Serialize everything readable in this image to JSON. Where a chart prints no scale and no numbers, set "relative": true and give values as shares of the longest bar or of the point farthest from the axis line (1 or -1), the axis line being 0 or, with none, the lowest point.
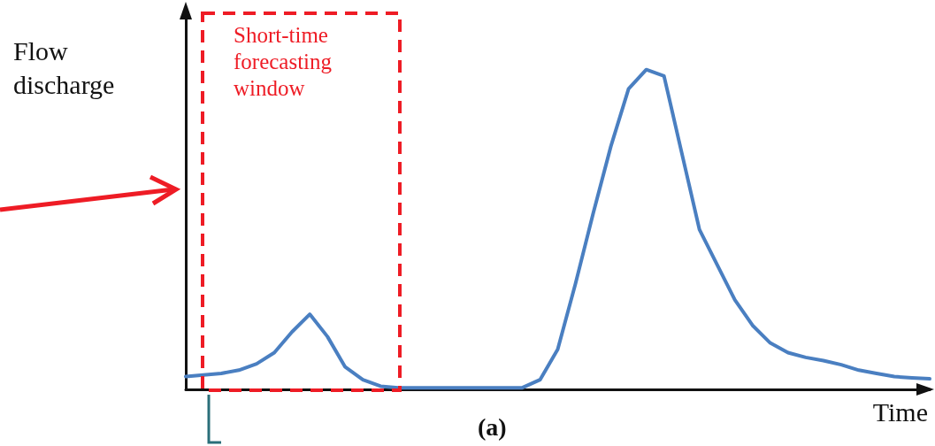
{
  "chart_data": {
    "type": "line",
    "relative": true,
    "xlabel": "Time",
    "ylabel": "Flow\ndischarge",
    "annotations": [
      "Short-time\nforecasting\nwindow",
      "(a)"
    ],
    "categories": [
      null,
      null,
      null,
      null,
      null,
      null,
      null,
      null,
      null,
      null,
      null,
      null,
      null,
      null,
      null,
      null,
      null,
      null,
      null,
      null,
      null,
      null,
      null,
      null,
      null,
      null,
      null,
      null,
      null,
      null,
      null,
      null,
      null,
      null,
      null,
      null,
      null,
      null,
      null,
      null,
      null,
      null,
      null
    ],
    "series": [
      {
        "color": "#4a7fc1",
        "values": [
          0.04,
          0.045,
          0.05,
          0.06,
          0.08,
          0.115,
          0.18,
          0.235,
          0.165,
          0.07,
          0.03,
          0.01,
          0.005,
          0.005,
          0.005,
          0.005,
          0.005,
          0.005,
          0.005,
          0.005,
          0.03,
          0.125,
          0.33,
          0.55,
          0.76,
          0.94,
          1,
          0.98,
          0.74,
          0.5,
          0.39,
          0.28,
          0.2,
          0.145,
          0.115,
          0.1,
          0.09,
          0.077,
          0.06,
          0.05,
          0.04,
          0.036,
          0.033
        ]
      }
    ],
    "marker": "none",
    "line_style": "solid"
  }
}
